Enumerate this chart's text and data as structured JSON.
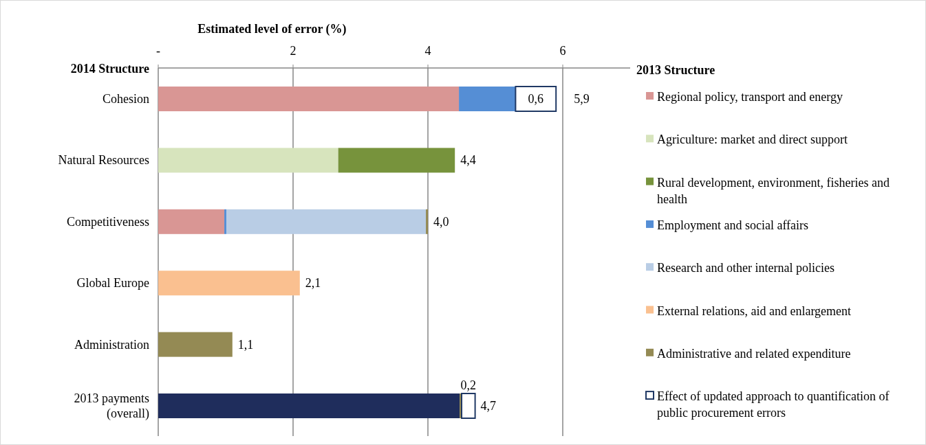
{
  "chart_data": {
    "type": "bar",
    "orientation": "horizontal",
    "stacked": true,
    "xlabel": "Estimated level of error  (%)",
    "legend_title": "2013 Structure",
    "legend": "right",
    "grid": "x",
    "annotations": [
      "2014 Structure"
    ],
    "categories": [
      "Cohesion",
      "Natural Resources",
      "Competitiveness",
      "Global Europe",
      "Administration",
      "2013 payments (overall)"
    ],
    "xlim": [
      0,
      7
    ],
    "xticks": [
      {
        "value": 0,
        "label": "-"
      },
      2,
      4,
      6
    ],
    "series": [
      {
        "color": "#1f2d5c",
        "values": [
          null,
          null,
          null,
          null,
          null,
          4.47
        ]
      },
      {
        "name": "Regional policy, transport and energy",
        "color": "#d99694",
        "values": [
          4.46,
          null,
          0.98,
          null,
          null,
          null
        ]
      },
      {
        "name": "Agriculture: market and direct support",
        "color": "#d7e4bd",
        "values": [
          null,
          2.67,
          null,
          null,
          null,
          null
        ]
      },
      {
        "name": "Rural development, environment, fisheries and health",
        "color": "#77933c",
        "values": [
          null,
          1.73,
          null,
          null,
          null,
          null
        ]
      },
      {
        "name": "Employment and social affairs",
        "color": "#558ed5",
        "values": [
          0.84,
          null,
          0.03,
          null,
          null,
          null
        ]
      },
      {
        "name": "Research and other internal policies",
        "color": "#b9cde5",
        "values": [
          null,
          null,
          2.96,
          null,
          null,
          null
        ]
      },
      {
        "name": "External relations, aid and enlargement",
        "color": "#fac090",
        "values": [
          null,
          null,
          null,
          2.1,
          null,
          null
        ]
      },
      {
        "name": "Administrative and related expenditure",
        "color": "#948a54",
        "values": [
          null,
          null,
          0.03,
          null,
          1.1,
          0.03
        ]
      },
      {
        "name": "Effect of updated approach to quantification of public procurement errors",
        "color": "#ffffff",
        "values": [
          0.6,
          null,
          null,
          null,
          null,
          0.2
        ],
        "value_labels": [
          "0,6",
          null,
          null,
          null,
          null,
          "0,2"
        ]
      }
    ],
    "totals": [
      "5,9",
      "4,4",
      "4,0",
      "2,1",
      "1,1",
      "4,7"
    ]
  }
}
